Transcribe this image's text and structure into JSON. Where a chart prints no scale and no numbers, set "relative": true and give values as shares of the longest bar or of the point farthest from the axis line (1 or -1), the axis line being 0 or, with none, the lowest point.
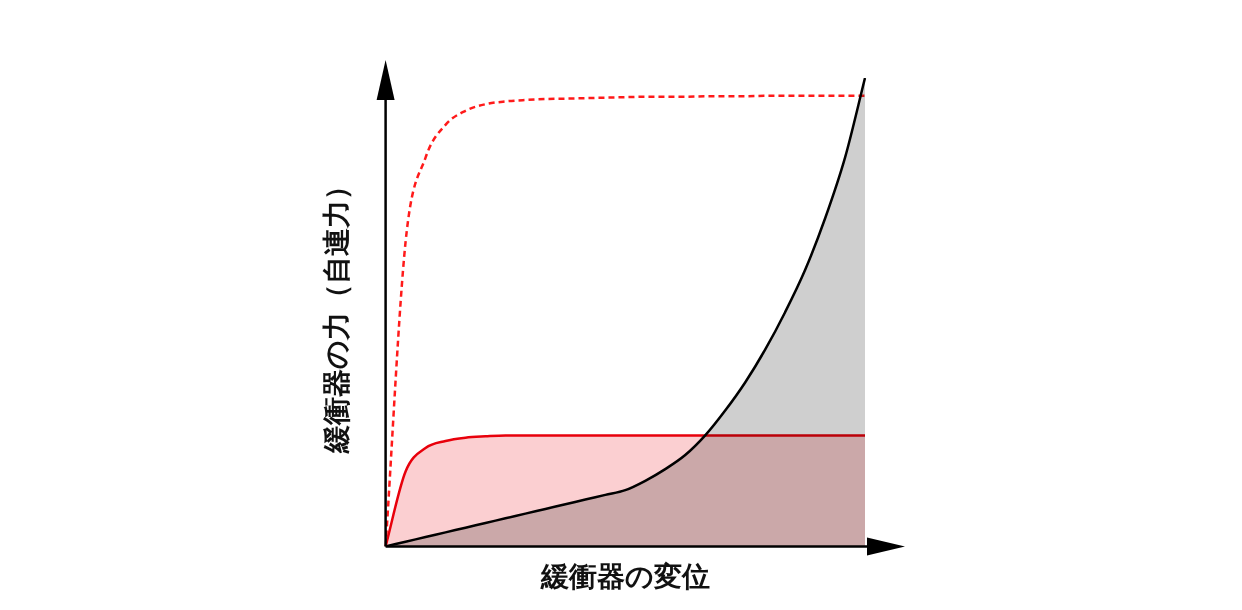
{
  "chart_data": {
    "type": "area",
    "relative": true,
    "xlabel": "緩衝器の変位",
    "ylabel": "緩衝器の力（自連力）",
    "legend": false,
    "grid": false,
    "tick_labels": false,
    "categories": [
      null,
      null,
      null,
      null,
      null,
      null,
      null,
      null,
      null,
      null,
      null,
      null,
      null,
      null,
      null,
      null,
      null,
      null,
      null,
      null,
      null,
      null,
      null,
      null,
      null
    ],
    "series": [
      {
        "type": "area",
        "color": "#000000",
        "values": [
          0,
          0.01,
          0.02,
          0.03,
          0.04,
          0.05,
          0.06,
          0.07,
          0.08,
          0.09,
          0.1,
          0.11,
          0.12,
          0.14,
          0.165,
          0.195,
          0.237,
          0.29,
          0.35,
          0.42,
          0.5,
          0.59,
          0.7,
          0.83,
          1
        ]
      },
      {
        "type": "area",
        "color": "#e8000b",
        "values": [
          0,
          0.16,
          0.21,
          0.225,
          0.232,
          0.235,
          0.237,
          0.237,
          0.237,
          0.237,
          0.237,
          0.237,
          0.237,
          0.237,
          0.237,
          0.237,
          0.237,
          0.237,
          0.237,
          0.237,
          0.237,
          0.237,
          0.237,
          0.237,
          0.237
        ]
      },
      {
        "type": "line",
        "line_style": "dashed",
        "color": "#ff1a1a",
        "values": [
          0,
          0.65,
          0.83,
          0.9,
          0.93,
          0.944,
          0.95,
          0.953,
          0.955,
          0.956,
          0.957,
          0.958,
          0.959,
          0.96,
          0.96,
          0.96,
          0.961,
          0.961,
          0.961,
          0.962,
          0.962,
          0.962,
          0.962,
          0.962,
          0.962
        ]
      }
    ]
  }
}
